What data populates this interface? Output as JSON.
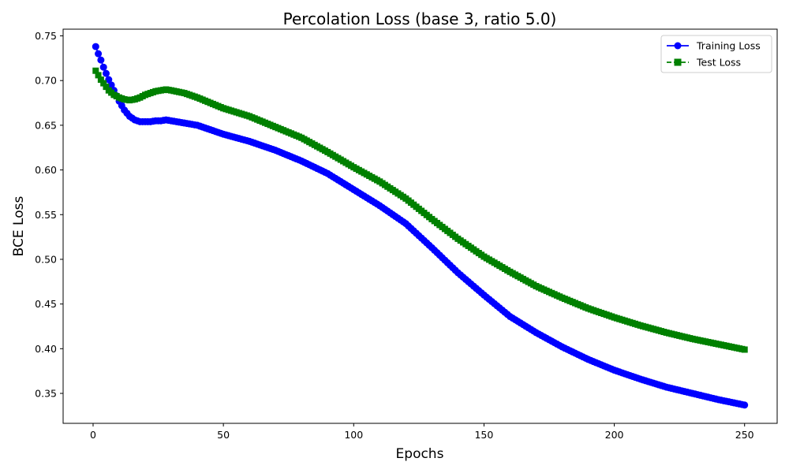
{
  "chart_data": {
    "type": "line",
    "title": "Percolation Loss (base 3, ratio 5.0)",
    "xlabel": "Epochs",
    "ylabel": "BCE Loss",
    "xlim": [
      -11.5,
      262.5
    ],
    "ylim": [
      0.3165,
      0.7575
    ],
    "xticks": [
      0,
      50,
      100,
      150,
      200,
      250
    ],
    "yticks": [
      0.35,
      0.4,
      0.45,
      0.5,
      0.55,
      0.6,
      0.65,
      0.7,
      0.75
    ],
    "grid": false,
    "legend_position": "upper-right",
    "x": {
      "start": 1,
      "end": 250,
      "step": 1
    },
    "series": [
      {
        "name": "Training Loss",
        "color": "#0000ff",
        "line_style": "solid",
        "marker": "circle",
        "anchors": [
          [
            1,
            0.738
          ],
          [
            2,
            0.73
          ],
          [
            3,
            0.723
          ],
          [
            4,
            0.715
          ],
          [
            5,
            0.708
          ],
          [
            6,
            0.701
          ],
          [
            8,
            0.689
          ],
          [
            10,
            0.677
          ],
          [
            12,
            0.667
          ],
          [
            14,
            0.66
          ],
          [
            16,
            0.656
          ],
          [
            18,
            0.654
          ],
          [
            20,
            0.654
          ],
          [
            22,
            0.654
          ],
          [
            24,
            0.655
          ],
          [
            26,
            0.655
          ],
          [
            28,
            0.656
          ],
          [
            30,
            0.655
          ],
          [
            40,
            0.65
          ],
          [
            50,
            0.64
          ],
          [
            60,
            0.632
          ],
          [
            70,
            0.622
          ],
          [
            80,
            0.61
          ],
          [
            90,
            0.596
          ],
          [
            100,
            0.578
          ],
          [
            110,
            0.56
          ],
          [
            120,
            0.54
          ],
          [
            130,
            0.513
          ],
          [
            140,
            0.485
          ],
          [
            150,
            0.46
          ],
          [
            160,
            0.436
          ],
          [
            170,
            0.418
          ],
          [
            180,
            0.402
          ],
          [
            190,
            0.388
          ],
          [
            200,
            0.376
          ],
          [
            210,
            0.366
          ],
          [
            220,
            0.357
          ],
          [
            230,
            0.35
          ],
          [
            240,
            0.343
          ],
          [
            250,
            0.337
          ]
        ]
      },
      {
        "name": "Test Loss",
        "color": "#008000",
        "line_style": "dashed",
        "marker": "square",
        "anchors": [
          [
            1,
            0.711
          ],
          [
            2,
            0.706
          ],
          [
            3,
            0.701
          ],
          [
            4,
            0.697
          ],
          [
            5,
            0.693
          ],
          [
            6,
            0.689
          ],
          [
            8,
            0.684
          ],
          [
            10,
            0.681
          ],
          [
            12,
            0.679
          ],
          [
            14,
            0.678
          ],
          [
            16,
            0.679
          ],
          [
            18,
            0.681
          ],
          [
            20,
            0.684
          ],
          [
            22,
            0.686
          ],
          [
            24,
            0.688
          ],
          [
            26,
            0.689
          ],
          [
            28,
            0.69
          ],
          [
            30,
            0.689
          ],
          [
            35,
            0.686
          ],
          [
            40,
            0.681
          ],
          [
            50,
            0.669
          ],
          [
            60,
            0.66
          ],
          [
            70,
            0.648
          ],
          [
            80,
            0.636
          ],
          [
            90,
            0.62
          ],
          [
            100,
            0.603
          ],
          [
            110,
            0.587
          ],
          [
            120,
            0.568
          ],
          [
            130,
            0.545
          ],
          [
            140,
            0.523
          ],
          [
            150,
            0.503
          ],
          [
            160,
            0.486
          ],
          [
            170,
            0.47
          ],
          [
            180,
            0.457
          ],
          [
            190,
            0.445
          ],
          [
            200,
            0.435
          ],
          [
            210,
            0.426
          ],
          [
            220,
            0.418
          ],
          [
            230,
            0.411
          ],
          [
            240,
            0.405
          ],
          [
            250,
            0.399
          ]
        ]
      }
    ]
  }
}
